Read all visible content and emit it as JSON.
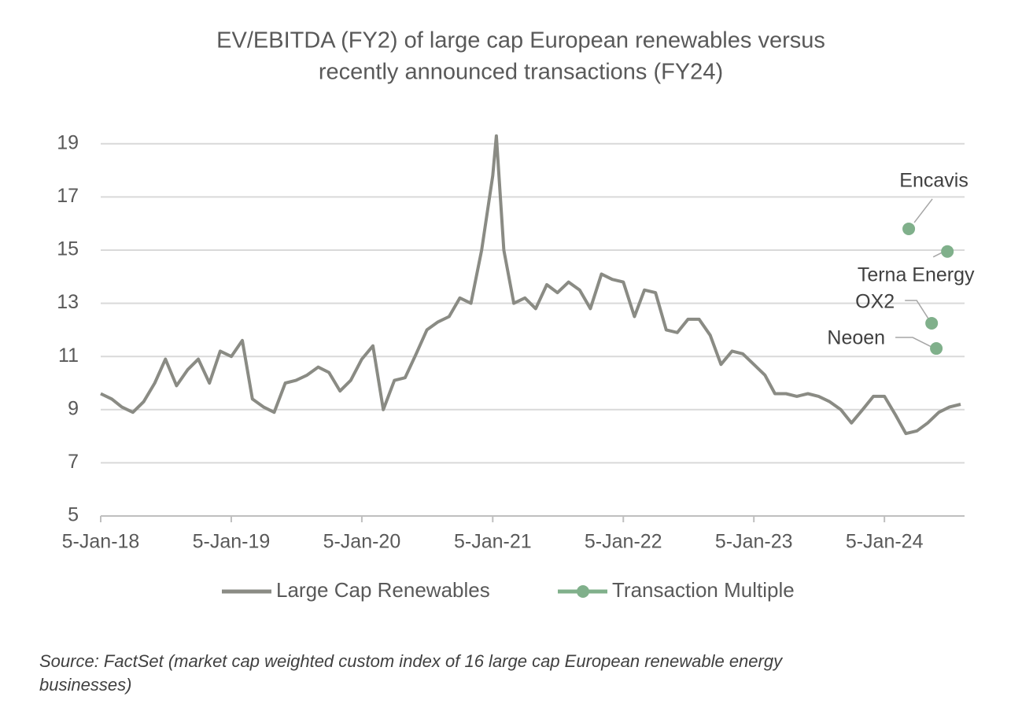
{
  "chart_data": {
    "type": "line",
    "title": "EV/EBITDA (FY2) of large cap European renewables versus",
    "subtitle": "recently announced transactions (FY24)",
    "footnote": "Source: FactSet (market cap weighted custom index of 16 large cap European renewable energy businesses)",
    "xlim": [
      "2018-01-05",
      "2024-08-16"
    ],
    "xticks": [
      {
        "value": "2018-01-05",
        "label": "5-Jan-18"
      },
      {
        "value": "2019-01-05",
        "label": "5-Jan-19"
      },
      {
        "value": "2020-01-05",
        "label": "5-Jan-20"
      },
      {
        "value": "2021-01-05",
        "label": "5-Jan-21"
      },
      {
        "value": "2022-01-05",
        "label": "5-Jan-22"
      },
      {
        "value": "2023-01-05",
        "label": "5-Jan-23"
      },
      {
        "value": "2024-01-05",
        "label": "5-Jan-24"
      }
    ],
    "ylim": [
      5,
      20
    ],
    "yticks": [
      5,
      7,
      9,
      11,
      13,
      15,
      17,
      19
    ],
    "grid": true,
    "series": [
      {
        "name": "Large Cap Renewables",
        "color": "#8a8b84",
        "style": "line",
        "x": [
          "2018-01-05",
          "2018-02-05",
          "2018-03-05",
          "2018-04-05",
          "2018-05-05",
          "2018-06-05",
          "2018-07-05",
          "2018-08-05",
          "2018-09-05",
          "2018-10-05",
          "2018-11-05",
          "2018-12-05",
          "2019-01-05",
          "2019-02-05",
          "2019-03-05",
          "2019-04-05",
          "2019-05-05",
          "2019-06-05",
          "2019-07-05",
          "2019-08-05",
          "2019-09-05",
          "2019-10-05",
          "2019-11-05",
          "2019-12-05",
          "2020-01-05",
          "2020-02-05",
          "2020-03-05",
          "2020-04-05",
          "2020-05-05",
          "2020-06-05",
          "2020-07-05",
          "2020-08-05",
          "2020-09-05",
          "2020-10-05",
          "2020-11-05",
          "2020-12-05",
          "2021-01-05",
          "2021-01-15",
          "2021-02-05",
          "2021-03-05",
          "2021-04-05",
          "2021-05-05",
          "2021-06-05",
          "2021-07-05",
          "2021-08-05",
          "2021-09-05",
          "2021-10-05",
          "2021-11-05",
          "2021-12-05",
          "2022-01-05",
          "2022-02-05",
          "2022-03-05",
          "2022-04-05",
          "2022-05-05",
          "2022-06-05",
          "2022-07-05",
          "2022-08-05",
          "2022-09-05",
          "2022-10-05",
          "2022-11-05",
          "2022-12-05",
          "2023-01-05",
          "2023-02-05",
          "2023-03-05",
          "2023-04-05",
          "2023-05-05",
          "2023-06-05",
          "2023-07-05",
          "2023-08-05",
          "2023-09-05",
          "2023-10-05",
          "2023-11-05",
          "2023-12-05",
          "2024-01-05",
          "2024-02-05",
          "2024-03-05",
          "2024-04-05",
          "2024-05-05",
          "2024-06-05",
          "2024-07-05",
          "2024-08-05"
        ],
        "values": [
          9.6,
          9.4,
          9.1,
          8.9,
          9.3,
          10.0,
          10.9,
          9.9,
          10.5,
          10.9,
          10.0,
          11.2,
          11.0,
          11.6,
          9.4,
          9.1,
          8.9,
          10.0,
          10.1,
          10.3,
          10.6,
          10.4,
          9.7,
          10.1,
          10.9,
          11.4,
          9.0,
          10.1,
          10.2,
          11.1,
          12.0,
          12.3,
          12.5,
          13.2,
          13.0,
          15.0,
          17.8,
          19.3,
          15.0,
          13.0,
          13.2,
          12.8,
          13.7,
          13.4,
          13.8,
          13.5,
          12.8,
          14.1,
          13.9,
          13.8,
          12.5,
          13.5,
          13.4,
          12.0,
          11.9,
          12.4,
          12.4,
          11.8,
          10.7,
          11.2,
          11.1,
          10.7,
          10.3,
          9.6,
          9.6,
          9.5,
          9.6,
          9.5,
          9.3,
          9.0,
          8.5,
          9.0,
          9.5,
          9.5,
          8.8,
          8.1,
          8.2,
          8.5,
          8.9,
          9.1,
          9.2
        ]
      },
      {
        "name": "Transaction Multiple",
        "color": "#80b08b",
        "style": "points",
        "x": [
          "2024-03-13",
          "2024-05-16",
          "2024-05-29",
          "2024-06-29"
        ],
        "values": [
          15.8,
          12.25,
          11.3,
          14.95
        ],
        "labels": [
          "Encavis",
          "OX2",
          "Neoen",
          "Terna Energy"
        ]
      }
    ]
  }
}
